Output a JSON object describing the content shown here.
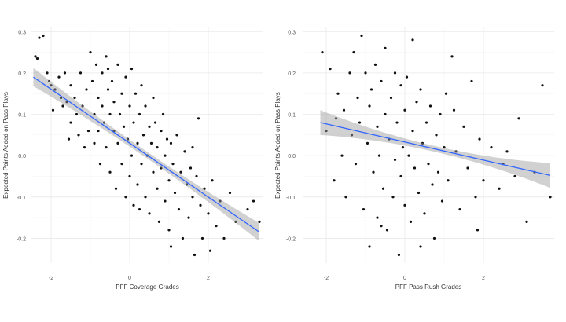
{
  "chart_data": [
    {
      "type": "scatter",
      "id": "coverage",
      "xlabel": "PFF Coverage Grades",
      "ylabel": "Expected Points Added on Pass Plays",
      "xlim": [
        -2.5,
        3.4
      ],
      "ylim": [
        -0.26,
        0.31
      ],
      "xticks": [
        -2,
        0,
        2
      ],
      "yticks": [
        -0.2,
        -0.1,
        0.0,
        0.1,
        0.2,
        0.3
      ],
      "ytick_labels": [
        "-0.2",
        "-0.1",
        "0.0",
        "0.1",
        "0.2",
        "0.3"
      ],
      "xtick_labels": [
        "-2",
        "0",
        "2"
      ],
      "grid": true,
      "regression": {
        "x0": -2.45,
        "y0": 0.19,
        "x1": 3.3,
        "y1": -0.185,
        "band_ends": 0.022,
        "band_mid": 0.008,
        "color": "#3366ff"
      },
      "points": [
        [
          -2.4,
          0.24
        ],
        [
          -2.3,
          0.285
        ],
        [
          -2.2,
          0.29
        ],
        [
          -2.35,
          0.235
        ],
        [
          -2.1,
          0.2
        ],
        [
          -2.05,
          0.18
        ],
        [
          -2.0,
          0.17
        ],
        [
          -1.9,
          0.16
        ],
        [
          -1.8,
          0.19
        ],
        [
          -1.75,
          0.14
        ],
        [
          -1.7,
          0.12
        ],
        [
          -1.65,
          0.2
        ],
        [
          -1.6,
          0.13
        ],
        [
          -1.5,
          0.17
        ],
        [
          -1.5,
          0.08
        ],
        [
          -1.4,
          0.14
        ],
        [
          -1.35,
          0.1
        ],
        [
          -1.3,
          0.05
        ],
        [
          -1.25,
          0.2
        ],
        [
          -1.2,
          0.12
        ],
        [
          -1.1,
          0.16
        ],
        [
          -1.05,
          0.06
        ],
        [
          -1.0,
          0.25
        ],
        [
          -0.95,
          0.18
        ],
        [
          -0.9,
          0.1
        ],
        [
          -0.9,
          0.03
        ],
        [
          -0.85,
          0.22
        ],
        [
          -0.8,
          0.14
        ],
        [
          -0.8,
          0.06
        ],
        [
          -0.75,
          -0.02
        ],
        [
          -0.7,
          0.2
        ],
        [
          -0.7,
          0.12
        ],
        [
          -0.65,
          0.08
        ],
        [
          -0.6,
          0.24
        ],
        [
          -0.6,
          0.02
        ],
        [
          -0.55,
          0.16
        ],
        [
          -0.5,
          0.1
        ],
        [
          -0.5,
          -0.04
        ],
        [
          -0.45,
          0.18
        ],
        [
          -0.4,
          0.06
        ],
        [
          -0.4,
          0.13
        ],
        [
          -0.35,
          -0.08
        ],
        [
          -0.3,
          0.22
        ],
        [
          -0.3,
          0.03
        ],
        [
          -0.25,
          0.1
        ],
        [
          -0.2,
          0.15
        ],
        [
          -0.2,
          -0.02
        ],
        [
          -0.15,
          0.07
        ],
        [
          -0.1,
          0.19
        ],
        [
          -0.1,
          -0.1
        ],
        [
          -0.05,
          0.04
        ],
        [
          0.0,
          0.12
        ],
        [
          0.0,
          -0.05
        ],
        [
          0.05,
          0.21
        ],
        [
          0.05,
          0.0
        ],
        [
          0.1,
          0.08
        ],
        [
          0.1,
          -0.12
        ],
        [
          0.15,
          0.15
        ],
        [
          0.2,
          0.03
        ],
        [
          0.2,
          -0.07
        ],
        [
          0.25,
          0.1
        ],
        [
          0.3,
          -0.02
        ],
        [
          0.3,
          0.17
        ],
        [
          0.35,
          0.05
        ],
        [
          0.4,
          -0.1
        ],
        [
          0.4,
          0.12
        ],
        [
          0.45,
          0.0
        ],
        [
          0.5,
          0.07
        ],
        [
          0.5,
          -0.14
        ],
        [
          0.55,
          0.03
        ],
        [
          0.6,
          -0.04
        ],
        [
          0.6,
          0.14
        ],
        [
          0.65,
          0.08
        ],
        [
          0.7,
          -0.08
        ],
        [
          0.7,
          0.02
        ],
        [
          0.75,
          -0.16
        ],
        [
          0.8,
          0.06
        ],
        [
          0.8,
          -0.03
        ],
        [
          0.85,
          0.1
        ],
        [
          0.9,
          -0.11
        ],
        [
          0.9,
          0.0
        ],
        [
          0.95,
          0.04
        ],
        [
          1.0,
          -0.06
        ],
        [
          1.0,
          -0.18
        ],
        [
          1.05,
          0.03
        ],
        [
          1.1,
          -0.02
        ],
        [
          1.15,
          -0.09
        ],
        [
          1.2,
          0.05
        ],
        [
          1.25,
          -0.13
        ],
        [
          1.3,
          -0.04
        ],
        [
          1.35,
          -0.2
        ],
        [
          1.4,
          0.01
        ],
        [
          1.45,
          -0.07
        ],
        [
          1.5,
          -0.15
        ],
        [
          1.55,
          -0.03
        ],
        [
          1.6,
          -0.1
        ],
        [
          1.65,
          -0.24
        ],
        [
          1.7,
          -0.05
        ],
        [
          1.75,
          0.09
        ],
        [
          1.8,
          -0.12
        ],
        [
          1.85,
          -0.2
        ],
        [
          1.9,
          -0.08
        ],
        [
          2.0,
          -0.14
        ],
        [
          2.05,
          -0.23
        ],
        [
          2.1,
          -0.06
        ],
        [
          2.2,
          -0.17
        ],
        [
          2.3,
          -0.11
        ],
        [
          2.4,
          -0.2
        ],
        [
          2.55,
          -0.09
        ],
        [
          2.7,
          -0.16
        ],
        [
          3.0,
          -0.13
        ],
        [
          3.15,
          -0.11
        ],
        [
          3.3,
          -0.16
        ],
        [
          -1.95,
          0.11
        ],
        [
          -1.55,
          0.04
        ],
        [
          -1.15,
          0.02
        ],
        [
          -0.55,
          0.21
        ],
        [
          0.25,
          -0.13
        ],
        [
          1.05,
          -0.22
        ],
        [
          1.6,
          0.02
        ]
      ]
    },
    {
      "type": "scatter",
      "id": "passrush",
      "xlabel": "PFF Pass Rush Grades",
      "ylabel": "Expected Points Added on Pass Plays",
      "xlim": [
        -2.6,
        3.8
      ],
      "ylim": [
        -0.26,
        0.31
      ],
      "xticks": [
        -2,
        0,
        2
      ],
      "yticks": [
        -0.2,
        -0.1,
        0.0,
        0.1,
        0.2,
        0.3
      ],
      "ytick_labels": [
        "-0.2",
        "-0.1",
        "0.0",
        "0.1",
        "0.2",
        "0.3"
      ],
      "xtick_labels": [
        "-2",
        "0",
        "2"
      ],
      "grid": true,
      "regression": {
        "x0": -2.15,
        "y0": 0.08,
        "x1": 3.7,
        "y1": -0.048,
        "band_ends": 0.03,
        "band_mid": 0.007,
        "color": "#3366ff"
      },
      "points": [
        [
          -2.1,
          0.25
        ],
        [
          -2.0,
          0.06
        ],
        [
          -1.9,
          0.21
        ],
        [
          -1.8,
          -0.06
        ],
        [
          -1.7,
          0.15
        ],
        [
          -1.6,
          0.0
        ],
        [
          -1.55,
          0.11
        ],
        [
          -1.5,
          -0.1
        ],
        [
          -1.4,
          0.2
        ],
        [
          -1.35,
          0.05
        ],
        [
          -1.3,
          0.25
        ],
        [
          -1.25,
          -0.02
        ],
        [
          -1.2,
          0.14
        ],
        [
          -1.15,
          0.08
        ],
        [
          -1.1,
          0.29
        ],
        [
          -1.05,
          -0.13
        ],
        [
          -1.0,
          0.2
        ],
        [
          -0.95,
          0.03
        ],
        [
          -0.9,
          0.12
        ],
        [
          -0.9,
          -0.22
        ],
        [
          -0.85,
          0.16
        ],
        [
          -0.8,
          -0.04
        ],
        [
          -0.75,
          0.22
        ],
        [
          -0.7,
          0.07
        ],
        [
          -0.7,
          -0.15
        ],
        [
          -0.65,
          0.0
        ],
        [
          -0.6,
          0.18
        ],
        [
          -0.55,
          -0.08
        ],
        [
          -0.5,
          0.1
        ],
        [
          -0.5,
          0.26
        ],
        [
          -0.45,
          -0.18
        ],
        [
          -0.4,
          0.04
        ],
        [
          -0.35,
          0.14
        ],
        [
          -0.3,
          -0.1
        ],
        [
          -0.25,
          0.2
        ],
        [
          -0.25,
          -0.01
        ],
        [
          -0.2,
          0.08
        ],
        [
          -0.15,
          -0.24
        ],
        [
          -0.1,
          0.17
        ],
        [
          -0.1,
          -0.05
        ],
        [
          -0.05,
          0.02
        ],
        [
          0.0,
          0.11
        ],
        [
          0.0,
          -0.12
        ],
        [
          0.05,
          0.19
        ],
        [
          0.1,
          0.0
        ],
        [
          0.15,
          -0.16
        ],
        [
          0.2,
          0.28
        ],
        [
          0.2,
          0.06
        ],
        [
          0.25,
          -0.03
        ],
        [
          0.3,
          0.13
        ],
        [
          0.35,
          -0.09
        ],
        [
          0.4,
          0.16
        ],
        [
          0.45,
          0.03
        ],
        [
          0.5,
          -0.14
        ],
        [
          0.55,
          0.08
        ],
        [
          0.6,
          -0.02
        ],
        [
          0.65,
          0.12
        ],
        [
          0.7,
          -0.07
        ],
        [
          0.75,
          -0.2
        ],
        [
          0.8,
          0.05
        ],
        [
          0.85,
          -0.04
        ],
        [
          0.9,
          0.1
        ],
        [
          0.95,
          -0.11
        ],
        [
          1.0,
          0.02
        ],
        [
          1.05,
          0.15
        ],
        [
          1.1,
          -0.06
        ],
        [
          1.2,
          0.24
        ],
        [
          1.3,
          0.01
        ],
        [
          1.4,
          -0.13
        ],
        [
          1.5,
          0.07
        ],
        [
          1.6,
          -0.03
        ],
        [
          1.7,
          0.18
        ],
        [
          1.8,
          -0.1
        ],
        [
          1.85,
          -0.18
        ],
        [
          1.9,
          0.04
        ],
        [
          2.0,
          -0.06
        ],
        [
          2.2,
          0.02
        ],
        [
          2.4,
          -0.08
        ],
        [
          2.6,
          0.01
        ],
        [
          2.8,
          -0.05
        ],
        [
          2.9,
          0.09
        ],
        [
          3.1,
          -0.16
        ],
        [
          3.3,
          -0.04
        ],
        [
          3.5,
          0.17
        ],
        [
          3.7,
          -0.1
        ],
        [
          -1.75,
          0.09
        ],
        [
          -0.6,
          -0.17
        ],
        [
          0.4,
          -0.22
        ],
        [
          1.25,
          0.11
        ],
        [
          2.5,
          -0.02
        ]
      ]
    }
  ]
}
